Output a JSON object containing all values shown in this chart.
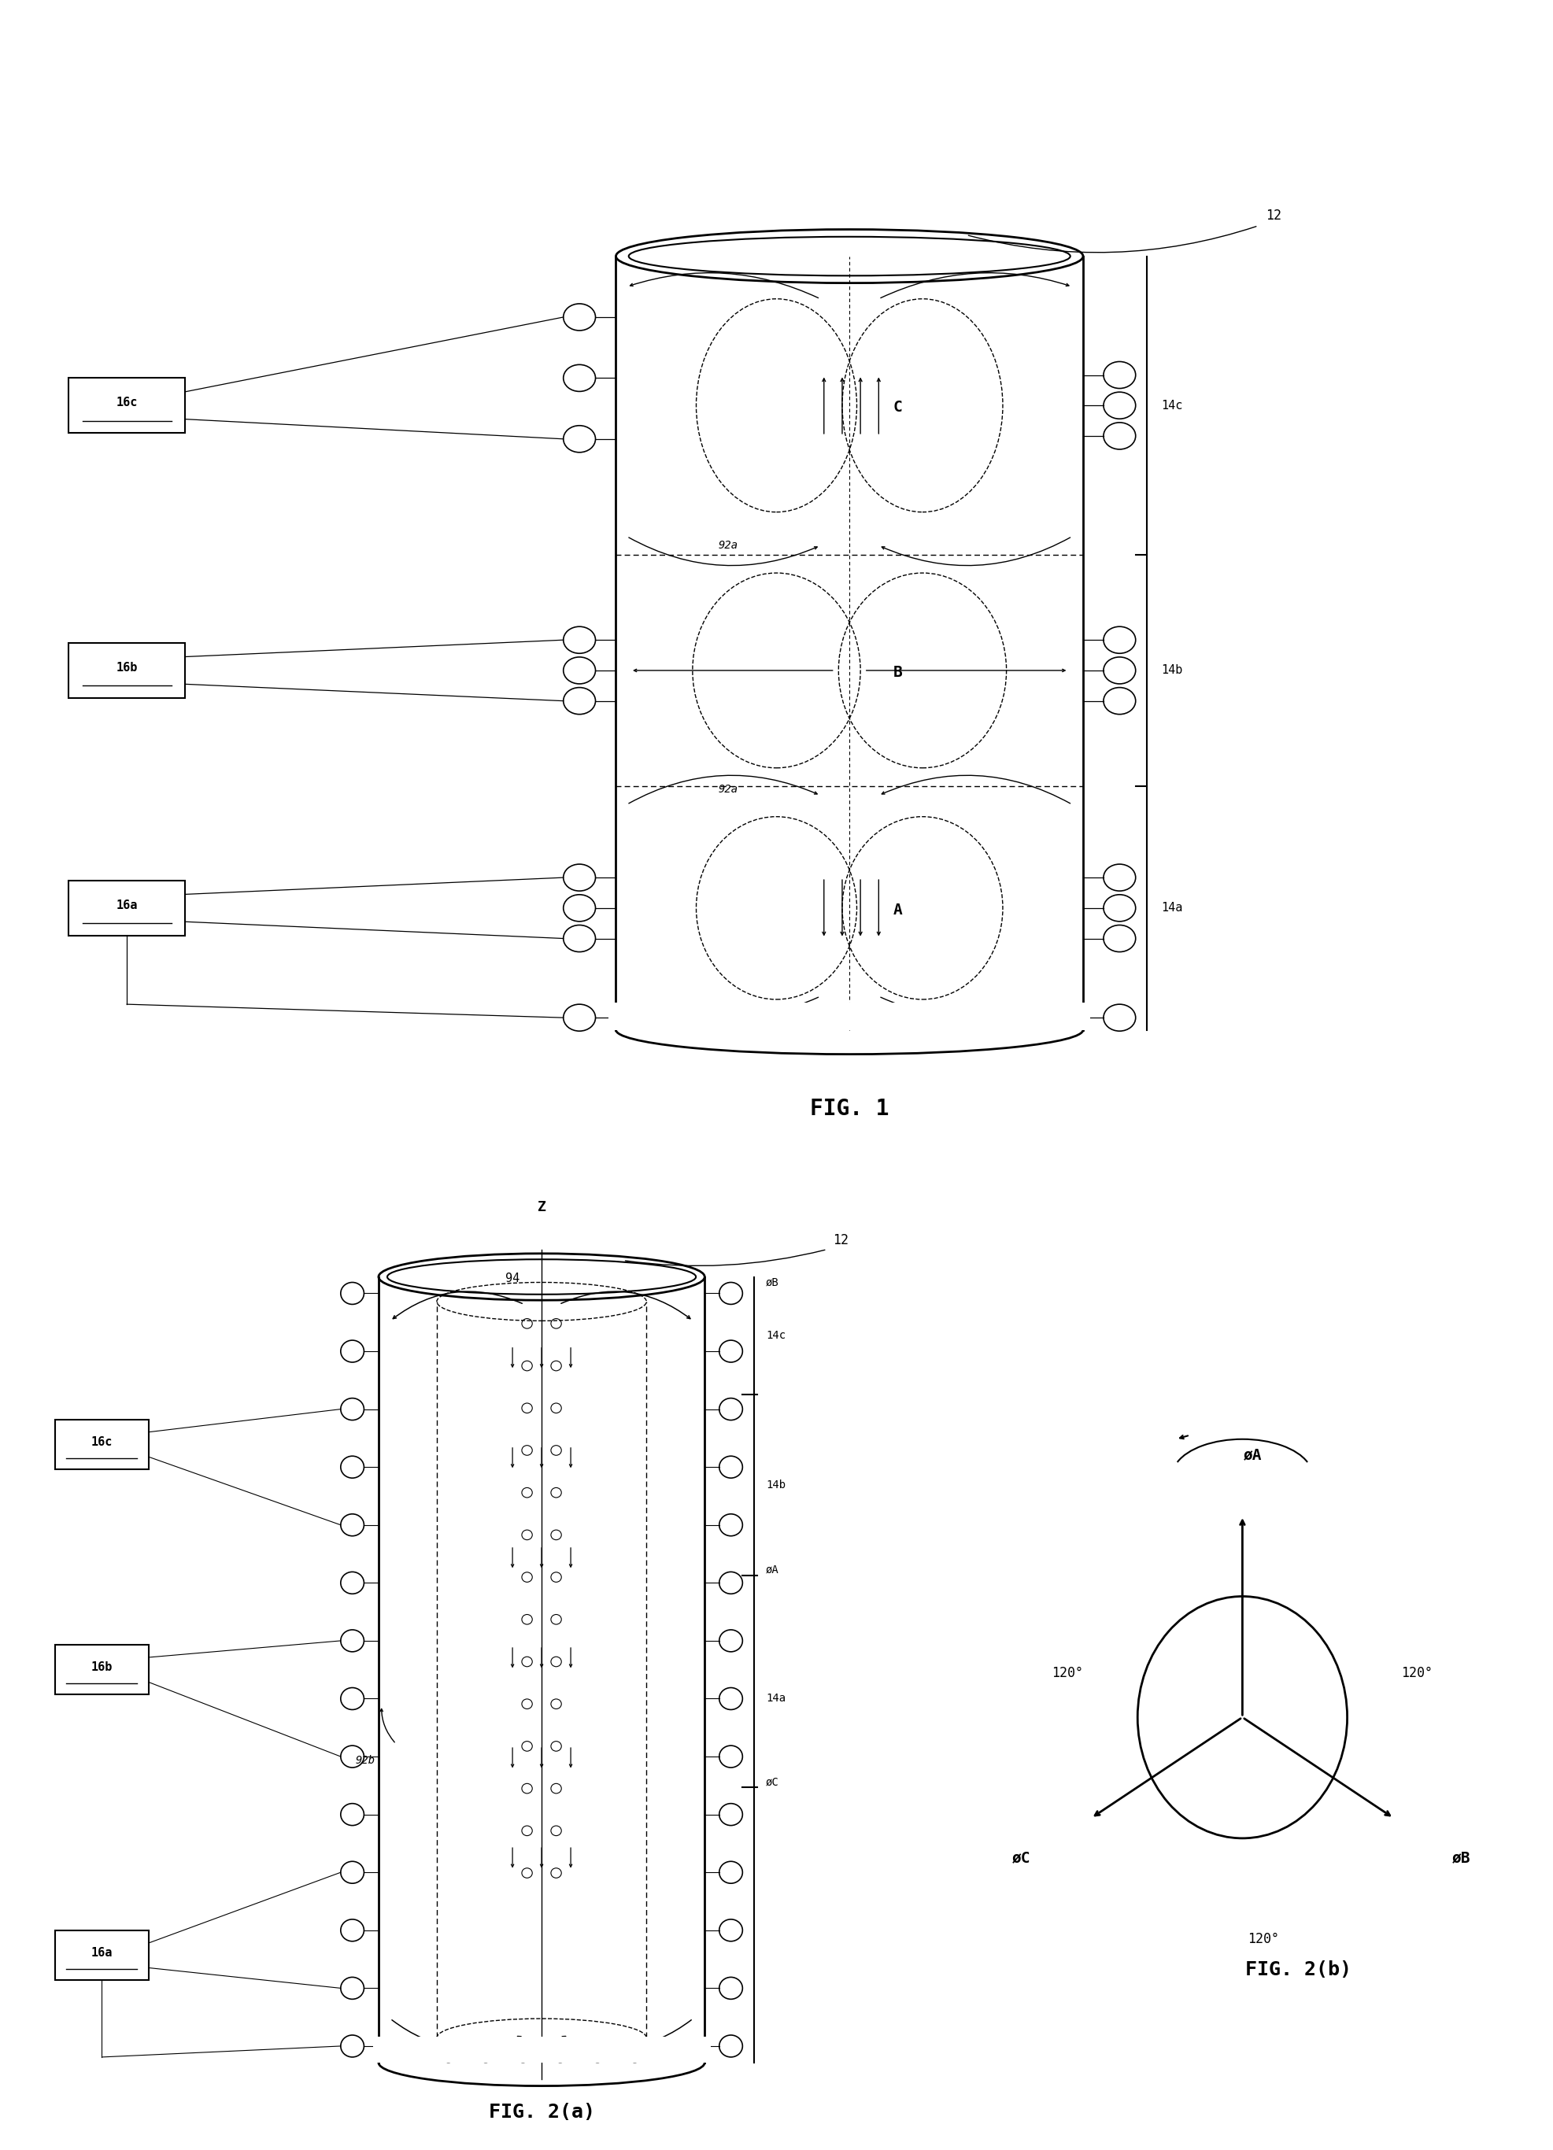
{
  "bg_color": "#ffffff",
  "fig_width": 19.73,
  "fig_height": 27.32,
  "lw": 1.5,
  "lw_thick": 2.0,
  "fig1": {
    "title": "FIG. 1",
    "label_12": "12",
    "label_14a": "14a",
    "label_14b": "14b",
    "label_14c": "14c",
    "label_16a": "16a",
    "label_16b": "16b",
    "label_16c": "16c",
    "label_92a_bottom": "92a",
    "label_92a_top": "92a",
    "label_A": "A",
    "label_B": "B",
    "label_C": "C"
  },
  "fig2a": {
    "title": "FIG. 2(a)",
    "label_12": "12",
    "label_14a": "14a",
    "label_14b": "14b",
    "label_14c": "14c",
    "label_16a": "16a",
    "label_16b": "16b",
    "label_16c": "16c",
    "label_92b": "92b",
    "label_94": "94",
    "label_phiA": "øA",
    "label_phiB": "øB",
    "label_phiC": "øC",
    "label_Z": "Z"
  },
  "fig2b": {
    "title": "FIG. 2(b)",
    "label_phiA": "øA",
    "label_phiB": "øB",
    "label_phiC": "øC",
    "label_120_left": "120°",
    "label_120_right": "120°",
    "label_120_bot": "120°"
  }
}
